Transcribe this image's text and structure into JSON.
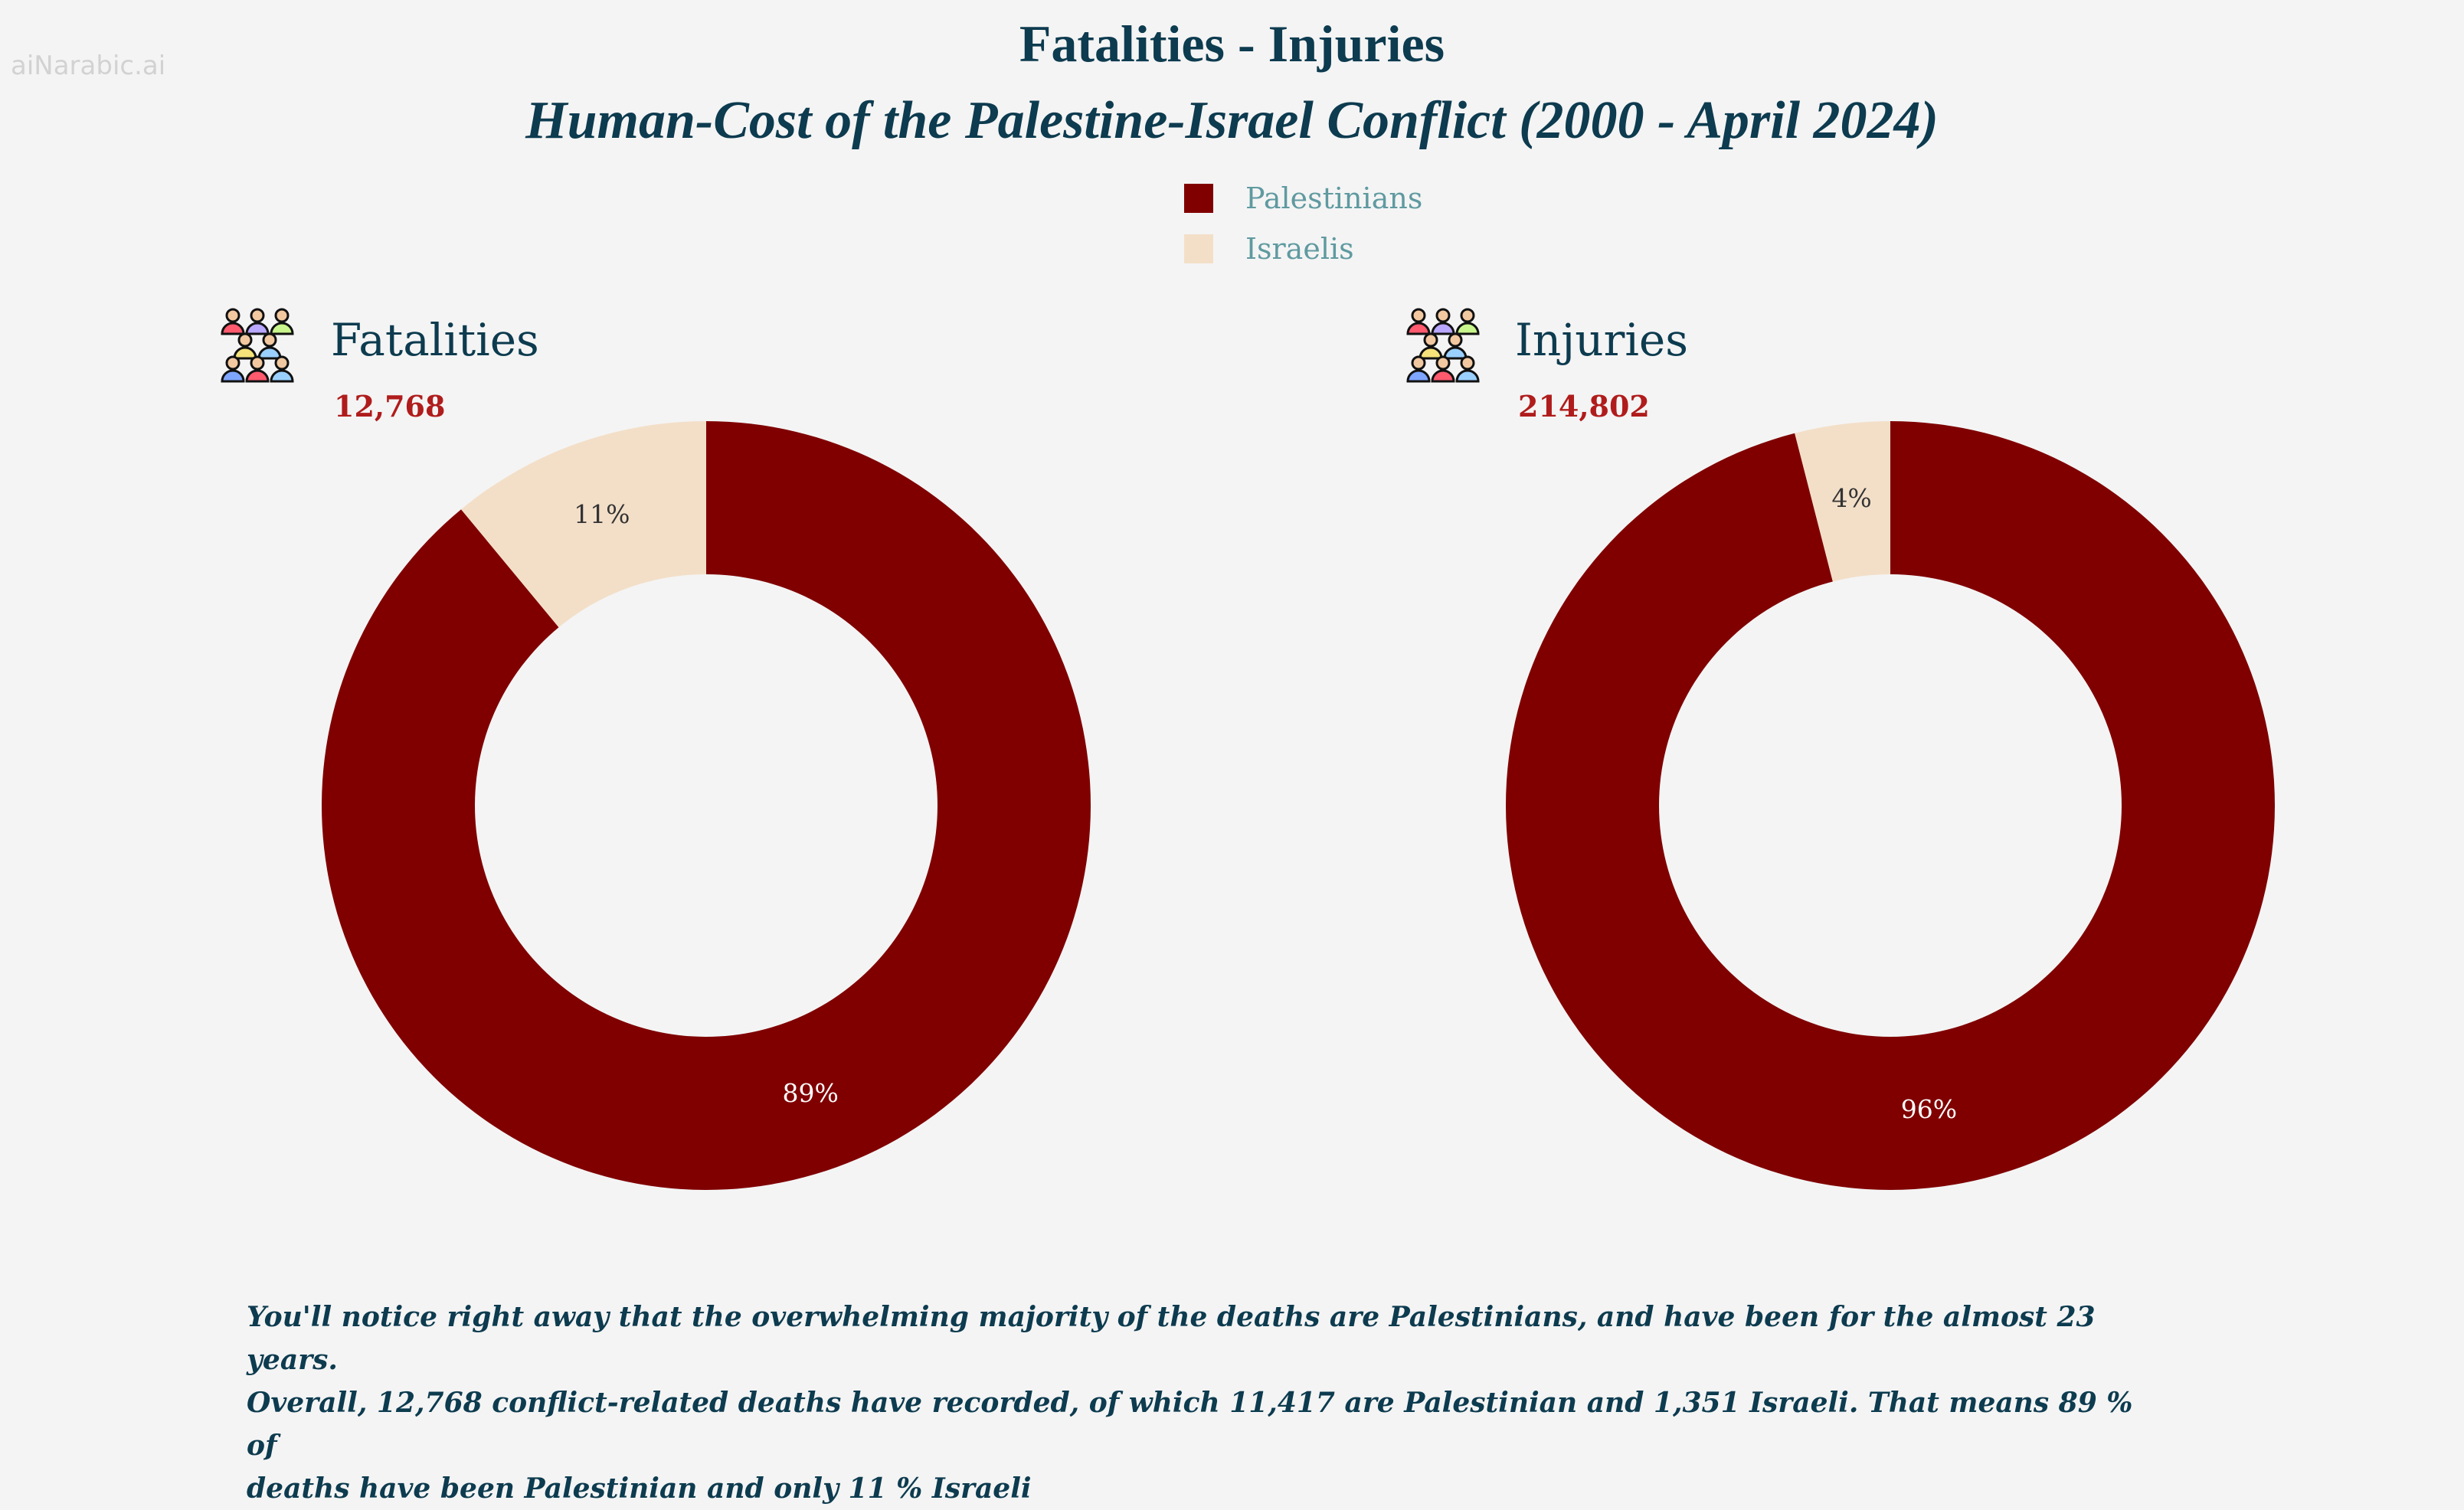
{
  "watermark": "aiNarabic.ai",
  "title": "Fatalities - Injuries",
  "subtitle": "Human-Cost of the Palestine-Israel Conflict (2000 - April 2024)",
  "legend": [
    {
      "label": "Palestinians",
      "color": "#800000"
    },
    {
      "label": "Israelis",
      "color": "#f3dfc8"
    }
  ],
  "panels": [
    {
      "title": "Fatalities",
      "total": "12,768",
      "icon": "people-group-icon"
    },
    {
      "title": "Injuries",
      "total": "214,802",
      "icon": "people-group-icon"
    }
  ],
  "chart_data": [
    {
      "type": "pie",
      "variant": "donut",
      "title": "Fatalities",
      "categories": [
        "Palestinians",
        "Israelis"
      ],
      "values": [
        89,
        11
      ],
      "labels": [
        "89%",
        "11%"
      ],
      "colors": [
        "#800000",
        "#f3dfc8"
      ],
      "start_angle": "top, clockwise"
    },
    {
      "type": "pie",
      "variant": "donut",
      "title": "Injuries",
      "categories": [
        "Palestinians",
        "Israelis"
      ],
      "values": [
        96,
        4
      ],
      "labels": [
        "96%",
        "4%"
      ],
      "colors": [
        "#800000",
        "#f3dfc8"
      ],
      "start_angle": "top, clockwise"
    }
  ],
  "caption": "You'll notice right away that the overwhelming majority of the deaths are Palestinians, and   have been for the almost 23 years.\nOverall, 12,768 conflict-related deaths have recorded, of which 11,417 are Palestinian and 1,351 Israeli.  That means 89 % of\ndeaths have been Palestinian and only 11 % Israeli"
}
